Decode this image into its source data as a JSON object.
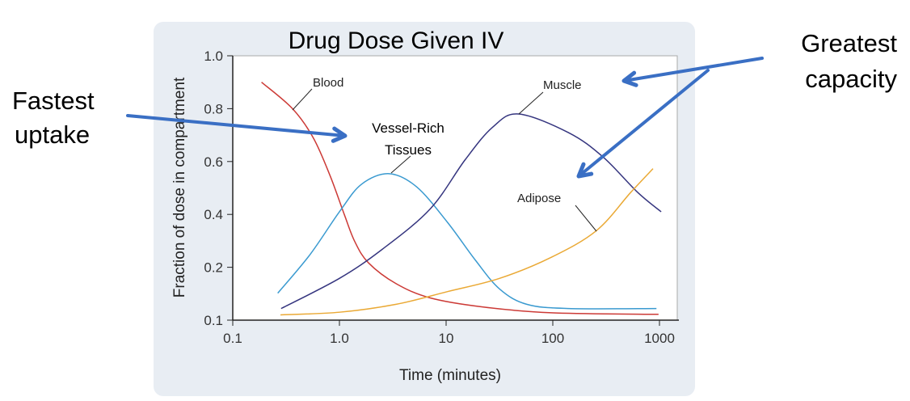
{
  "chart_data": {
    "type": "line",
    "title": "Drug Dose Given IV",
    "xlabel": "Time (minutes)",
    "ylabel": "Fraction of dose in compartment",
    "xscale": "log",
    "xlim": [
      0.1,
      1000
    ],
    "ylim": [
      0.1,
      1.0
    ],
    "xticks": [
      "0.1",
      "1.0",
      "10",
      "100",
      "1000"
    ],
    "yticks": [
      "0.1",
      "0.2",
      "0.4",
      "0.6",
      "0.8",
      "1.0"
    ],
    "grid": false,
    "series": [
      {
        "name": "Blood",
        "color": "#cc3a36",
        "x": [
          0.186,
          0.363,
          0.57,
          0.82,
          1.11,
          1.39,
          1.87,
          3.4,
          7.1,
          21.9,
          97,
          980
        ],
        "y": [
          0.9,
          0.8,
          0.689,
          0.545,
          0.4,
          0.298,
          0.217,
          0.169,
          0.142,
          0.125,
          0.114,
          0.111
        ]
      },
      {
        "name": "Vessel-Rich Tissues",
        "color": "#3a9ad0",
        "x": [
          0.264,
          0.53,
          1.0,
          1.61,
          2.92,
          5.3,
          10.3,
          18.8,
          31.7,
          57,
          141,
          937
        ],
        "y": [
          0.151,
          0.248,
          0.41,
          0.514,
          0.554,
          0.504,
          0.37,
          0.227,
          0.159,
          0.13,
          0.122,
          0.122
        ]
      },
      {
        "name": "Muscle",
        "color": "#35357f",
        "x": [
          0.284,
          1.0,
          2.52,
          7.1,
          15.1,
          27.3,
          47.9,
          141,
          296,
          626,
          1037
        ],
        "y": [
          0.122,
          0.179,
          0.268,
          0.421,
          0.607,
          0.73,
          0.78,
          0.709,
          0.617,
          0.483,
          0.41
        ]
      },
      {
        "name": "Adipose",
        "color": "#eaa935",
        "x": [
          0.28,
          1.0,
          3.4,
          10.3,
          31.7,
          97,
          257,
          537,
          870
        ],
        "y": [
          0.11,
          0.115,
          0.13,
          0.154,
          0.179,
          0.238,
          0.339,
          0.483,
          0.573
        ]
      }
    ],
    "curve_labels": {
      "blood": "Blood",
      "vessel_rich_1": "Vessel-Rich",
      "vessel_rich_2": "Tissues",
      "muscle": "Muscle",
      "adipose": "Adipose"
    },
    "annotations": {
      "fastest_1": "Fastest",
      "fastest_2": "uptake",
      "greatest_1": "Greatest",
      "greatest_2": "capacity",
      "arrow_color": "#3a6fc4"
    }
  }
}
